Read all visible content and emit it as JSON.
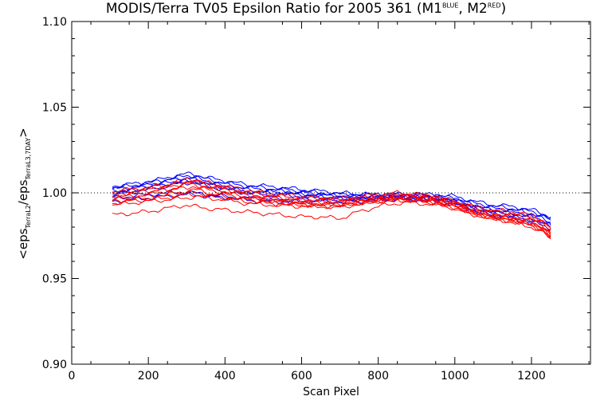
{
  "chart_data": {
    "type": "line",
    "title": {
      "prefix": "MODIS/Terra TV05 Epsilon Ratio for 2005 361 (M1",
      "sup1": "BLUE",
      "mid": ", M2",
      "sup2": "RED",
      "suffix": ")"
    },
    "xlabel": "Scan Pixel",
    "ylabel": {
      "lt": "<eps",
      "sub1": "TerraL2",
      "slash": "/eps",
      "sub2": "TerraL3,7DAY",
      "gt": ">"
    },
    "xlim": [
      0,
      1354
    ],
    "ylim": [
      0.9,
      1.1
    ],
    "xticks": [
      0,
      200,
      400,
      600,
      800,
      1000,
      1200
    ],
    "xtick_labels": [
      "0",
      "200",
      "400",
      "600",
      "800",
      "1000",
      "1200"
    ],
    "yticks": [
      0.9,
      0.95,
      1.0,
      1.05,
      1.1
    ],
    "ytick_labels": [
      "0.90",
      "0.95",
      "1.00",
      "1.05",
      "1.10"
    ],
    "reference_line": 1.0,
    "x": [
      106,
      150,
      200,
      250,
      300,
      320,
      350,
      400,
      450,
      500,
      550,
      600,
      650,
      700,
      750,
      800,
      850,
      900,
      950,
      1000,
      1050,
      1100,
      1150,
      1200,
      1230,
      1250
    ],
    "series": [
      {
        "color": "#0000ff",
        "values": [
          1.004,
          1.005,
          1.006,
          1.009,
          1.011,
          1.011,
          1.009,
          1.007,
          1.005,
          1.004,
          1.003,
          1.002,
          1.001,
          1.0,
          0.999,
          0.999,
          0.999,
          0.999,
          0.999,
          0.998,
          0.995,
          0.993,
          0.992,
          0.99,
          0.988,
          0.986
        ]
      },
      {
        "color": "#0000ff",
        "values": [
          1.003,
          1.004,
          1.006,
          1.008,
          1.01,
          1.01,
          1.008,
          1.006,
          1.004,
          1.003,
          1.002,
          1.001,
          1.0,
          0.999,
          0.999,
          0.999,
          0.999,
          0.999,
          0.998,
          0.997,
          0.994,
          0.992,
          0.991,
          0.989,
          0.987,
          0.985
        ]
      },
      {
        "color": "#0000ff",
        "values": [
          1.002,
          1.003,
          1.005,
          1.007,
          1.009,
          1.009,
          1.007,
          1.005,
          1.003,
          1.002,
          1.001,
          1.0,
          0.999,
          0.998,
          0.998,
          0.998,
          0.998,
          0.998,
          0.998,
          0.996,
          0.993,
          0.991,
          0.99,
          0.988,
          0.986,
          0.984
        ]
      },
      {
        "color": "#0000ff",
        "values": [
          1.001,
          1.002,
          1.004,
          1.006,
          1.008,
          1.008,
          1.006,
          1.004,
          1.002,
          1.001,
          1.0,
          0.999,
          0.999,
          0.998,
          0.998,
          0.998,
          0.998,
          0.998,
          0.997,
          0.996,
          0.992,
          0.99,
          0.989,
          0.987,
          0.985,
          0.983
        ]
      },
      {
        "color": "#0000ff",
        "values": [
          1.0,
          1.001,
          1.003,
          1.005,
          1.007,
          1.007,
          1.005,
          1.003,
          1.001,
          1.0,
          1.0,
          0.999,
          0.998,
          0.997,
          0.997,
          0.997,
          0.997,
          0.997,
          0.997,
          0.995,
          0.992,
          0.989,
          0.988,
          0.986,
          0.984,
          0.982
        ]
      },
      {
        "color": "#0000ff",
        "values": [
          0.999,
          1.0,
          1.002,
          1.004,
          1.006,
          1.006,
          1.004,
          1.002,
          1.0,
          0.999,
          0.999,
          0.998,
          0.997,
          0.997,
          0.996,
          0.997,
          0.997,
          0.997,
          0.996,
          0.995,
          0.991,
          0.989,
          0.987,
          0.985,
          0.983,
          0.981
        ]
      },
      {
        "color": "#0000ff",
        "values": [
          0.997,
          0.998,
          0.999,
          1.0,
          1.0,
          1.0,
          0.999,
          0.998,
          0.997,
          0.997,
          0.996,
          0.996,
          0.996,
          0.995,
          0.996,
          0.997,
          0.997,
          0.996,
          0.996,
          0.994,
          0.99,
          0.988,
          0.986,
          0.984,
          0.982,
          0.98
        ]
      },
      {
        "color": "#0000ff",
        "values": [
          0.995,
          0.996,
          0.997,
          0.998,
          0.999,
          0.999,
          0.998,
          0.997,
          0.996,
          0.995,
          0.995,
          0.995,
          0.995,
          0.995,
          0.995,
          0.996,
          0.996,
          0.996,
          0.995,
          0.993,
          0.99,
          0.987,
          0.985,
          0.983,
          0.981,
          0.979
        ]
      },
      {
        "color": "#ff0000",
        "values": [
          1.001,
          1.002,
          1.003,
          1.005,
          1.008,
          1.008,
          1.006,
          1.004,
          1.002,
          1.0,
          0.999,
          0.998,
          0.997,
          0.997,
          0.998,
          0.999,
          1.0,
          0.999,
          0.998,
          0.995,
          0.992,
          0.99,
          0.989,
          0.987,
          0.984,
          0.98
        ]
      },
      {
        "color": "#ff0000",
        "values": [
          1.0,
          1.001,
          1.002,
          1.004,
          1.007,
          1.007,
          1.005,
          1.003,
          1.001,
          0.999,
          0.998,
          0.997,
          0.997,
          0.996,
          0.997,
          0.998,
          0.999,
          0.999,
          0.997,
          0.995,
          0.991,
          0.989,
          0.988,
          0.986,
          0.983,
          0.979
        ]
      },
      {
        "color": "#ff0000",
        "values": [
          0.999,
          1.0,
          1.001,
          1.003,
          1.006,
          1.006,
          1.004,
          1.002,
          1.0,
          0.998,
          0.997,
          0.996,
          0.996,
          0.996,
          0.996,
          0.997,
          0.998,
          0.998,
          0.997,
          0.994,
          0.99,
          0.988,
          0.987,
          0.985,
          0.982,
          0.978
        ]
      },
      {
        "color": "#ff0000",
        "values": [
          0.998,
          0.999,
          1.0,
          1.002,
          1.005,
          1.005,
          1.003,
          1.001,
          0.999,
          0.997,
          0.996,
          0.995,
          0.995,
          0.995,
          0.996,
          0.997,
          0.998,
          0.998,
          0.996,
          0.994,
          0.99,
          0.987,
          0.986,
          0.984,
          0.981,
          0.977
        ]
      },
      {
        "color": "#ff0000",
        "values": [
          0.997,
          0.998,
          0.999,
          1.001,
          1.003,
          1.004,
          1.002,
          1.0,
          0.998,
          0.996,
          0.995,
          0.995,
          0.994,
          0.994,
          0.995,
          0.996,
          0.997,
          0.997,
          0.996,
          0.993,
          0.989,
          0.987,
          0.985,
          0.983,
          0.98,
          0.976
        ]
      },
      {
        "color": "#ff0000",
        "values": [
          0.996,
          0.997,
          0.998,
          0.999,
          1.001,
          1.002,
          1.0,
          0.999,
          0.997,
          0.996,
          0.995,
          0.994,
          0.994,
          0.993,
          0.995,
          0.996,
          0.997,
          0.997,
          0.995,
          0.993,
          0.989,
          0.986,
          0.985,
          0.982,
          0.979,
          0.975
        ]
      },
      {
        "color": "#ff0000",
        "values": [
          0.995,
          0.996,
          0.997,
          0.998,
          1.0,
          1.0,
          0.999,
          0.998,
          0.996,
          0.995,
          0.994,
          0.993,
          0.993,
          0.993,
          0.994,
          0.996,
          0.996,
          0.996,
          0.995,
          0.992,
          0.988,
          0.986,
          0.984,
          0.982,
          0.979,
          0.975
        ]
      },
      {
        "color": "#ff0000",
        "values": [
          0.994,
          0.995,
          0.996,
          0.997,
          0.999,
          0.999,
          0.998,
          0.997,
          0.995,
          0.994,
          0.993,
          0.993,
          0.992,
          0.992,
          0.994,
          0.995,
          0.996,
          0.996,
          0.994,
          0.992,
          0.988,
          0.985,
          0.984,
          0.981,
          0.978,
          0.974
        ]
      },
      {
        "color": "#ff0000",
        "values": [
          0.993,
          0.994,
          0.995,
          0.996,
          0.997,
          0.998,
          0.997,
          0.996,
          0.994,
          0.993,
          0.993,
          0.992,
          0.992,
          0.992,
          0.993,
          0.995,
          0.996,
          0.995,
          0.994,
          0.991,
          0.988,
          0.985,
          0.983,
          0.981,
          0.978,
          0.974
        ]
      },
      {
        "color": "#ff0000",
        "values": [
          0.987,
          0.988,
          0.989,
          0.991,
          0.993,
          0.992,
          0.991,
          0.99,
          0.989,
          0.988,
          0.987,
          0.986,
          0.986,
          0.985,
          0.989,
          0.992,
          0.994,
          0.994,
          0.993,
          0.991,
          0.987,
          0.985,
          0.983,
          0.98,
          0.977,
          0.973
        ]
      }
    ]
  }
}
